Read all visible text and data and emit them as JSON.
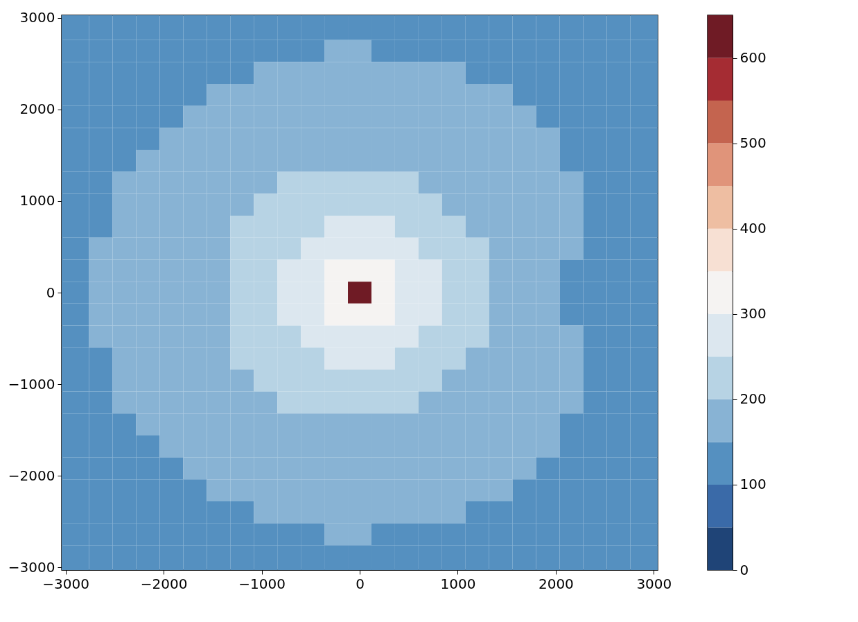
{
  "chart_data": {
    "type": "heatmap",
    "x": [
      -2880,
      -2640,
      -2400,
      -2160,
      -1920,
      -1680,
      -1440,
      -1200,
      -960,
      -720,
      -480,
      -240,
      0,
      240,
      480,
      720,
      960,
      1200,
      1440,
      1680,
      1920,
      2160,
      2400,
      2640,
      2880
    ],
    "y": [
      2880,
      2640,
      2400,
      2160,
      1920,
      1680,
      1440,
      1200,
      960,
      720,
      480,
      240,
      0,
      -240,
      -480,
      -720,
      -960,
      -1200,
      -1440,
      -1680,
      -1920,
      -2160,
      -2400,
      -2640,
      -2880
    ],
    "xlim": [
      -3040,
      3040
    ],
    "ylim": [
      -3030,
      3030
    ],
    "xticks": [
      {
        "value": -3000,
        "label": "−3000"
      },
      {
        "value": -2000,
        "label": "−2000"
      },
      {
        "value": -1000,
        "label": "−1000"
      },
      0,
      1000,
      2000,
      3000
    ],
    "yticks": [
      {
        "value": -3000,
        "label": "−3000"
      },
      {
        "value": -2000,
        "label": "−2000"
      },
      {
        "value": -1000,
        "label": "−1000"
      },
      0,
      1000,
      2000,
      3000
    ],
    "clim": [
      0,
      650
    ],
    "cticks": [
      0,
      100,
      200,
      300,
      400,
      500,
      600
    ],
    "colors": [
      "#1f4477",
      "#3a6aa8",
      "#5590c0",
      "#88b3d4",
      "#b7d3e4",
      "#dce7ef",
      "#f5f3f2",
      "#f7e0d3",
      "#eebea2",
      "#e0947a",
      "#c4644f",
      "#a52c33",
      "#6f1b25"
    ],
    "cells": [
      [
        125,
        125,
        125,
        125,
        125,
        125,
        125,
        125,
        125,
        125,
        125,
        125,
        125,
        125,
        125,
        125,
        125,
        125,
        125,
        125,
        125,
        125,
        125,
        125,
        125
      ],
      [
        125,
        125,
        125,
        125,
        125,
        125,
        125,
        125,
        125,
        125,
        125,
        175,
        175,
        125,
        125,
        125,
        125,
        125,
        125,
        125,
        125,
        125,
        125,
        125,
        125
      ],
      [
        125,
        125,
        125,
        125,
        125,
        125,
        125,
        125,
        175,
        175,
        175,
        175,
        175,
        175,
        175,
        175,
        175,
        125,
        125,
        125,
        125,
        125,
        125,
        125,
        125
      ],
      [
        125,
        125,
        125,
        125,
        125,
        125,
        175,
        175,
        175,
        175,
        175,
        175,
        175,
        175,
        175,
        175,
        175,
        175,
        175,
        125,
        125,
        125,
        125,
        125,
        125
      ],
      [
        125,
        125,
        125,
        125,
        125,
        175,
        175,
        175,
        175,
        175,
        175,
        175,
        175,
        175,
        175,
        175,
        175,
        175,
        175,
        175,
        125,
        125,
        125,
        125,
        125
      ],
      [
        125,
        125,
        125,
        125,
        175,
        175,
        175,
        175,
        175,
        175,
        175,
        175,
        175,
        175,
        175,
        175,
        175,
        175,
        175,
        175,
        175,
        125,
        125,
        125,
        125
      ],
      [
        125,
        125,
        125,
        175,
        175,
        175,
        175,
        175,
        175,
        175,
        175,
        175,
        175,
        175,
        175,
        175,
        175,
        175,
        175,
        175,
        175,
        125,
        125,
        125,
        125
      ],
      [
        125,
        125,
        175,
        175,
        175,
        175,
        175,
        175,
        175,
        225,
        225,
        225,
        225,
        225,
        225,
        175,
        175,
        175,
        175,
        175,
        175,
        175,
        125,
        125,
        125
      ],
      [
        125,
        125,
        175,
        175,
        175,
        175,
        175,
        175,
        225,
        225,
        225,
        225,
        225,
        225,
        225,
        225,
        175,
        175,
        175,
        175,
        175,
        175,
        125,
        125,
        125
      ],
      [
        125,
        125,
        175,
        175,
        175,
        175,
        175,
        225,
        225,
        225,
        225,
        275,
        275,
        275,
        225,
        225,
        225,
        175,
        175,
        175,
        175,
        175,
        125,
        125,
        125
      ],
      [
        125,
        175,
        175,
        175,
        175,
        175,
        175,
        225,
        225,
        225,
        275,
        275,
        275,
        275,
        275,
        225,
        225,
        225,
        175,
        175,
        175,
        175,
        125,
        125,
        125
      ],
      [
        125,
        175,
        175,
        175,
        175,
        175,
        175,
        225,
        225,
        275,
        275,
        325,
        325,
        325,
        275,
        275,
        225,
        225,
        175,
        175,
        175,
        125,
        125,
        125,
        125
      ],
      [
        125,
        175,
        175,
        175,
        175,
        175,
        175,
        225,
        225,
        275,
        275,
        325,
        625,
        325,
        275,
        275,
        225,
        225,
        175,
        175,
        175,
        125,
        125,
        125,
        125
      ],
      [
        125,
        175,
        175,
        175,
        175,
        175,
        175,
        225,
        225,
        275,
        275,
        325,
        325,
        325,
        275,
        275,
        225,
        225,
        175,
        175,
        175,
        125,
        125,
        125,
        125
      ],
      [
        125,
        175,
        175,
        175,
        175,
        175,
        175,
        225,
        225,
        225,
        275,
        275,
        275,
        275,
        275,
        225,
        225,
        225,
        175,
        175,
        175,
        175,
        125,
        125,
        125
      ],
      [
        125,
        125,
        175,
        175,
        175,
        175,
        175,
        225,
        225,
        225,
        225,
        275,
        275,
        275,
        225,
        225,
        225,
        175,
        175,
        175,
        175,
        175,
        125,
        125,
        125
      ],
      [
        125,
        125,
        175,
        175,
        175,
        175,
        175,
        175,
        225,
        225,
        225,
        225,
        225,
        225,
        225,
        225,
        175,
        175,
        175,
        175,
        175,
        175,
        125,
        125,
        125
      ],
      [
        125,
        125,
        175,
        175,
        175,
        175,
        175,
        175,
        175,
        225,
        225,
        225,
        225,
        225,
        225,
        175,
        175,
        175,
        175,
        175,
        175,
        175,
        125,
        125,
        125
      ],
      [
        125,
        125,
        125,
        175,
        175,
        175,
        175,
        175,
        175,
        175,
        175,
        175,
        175,
        175,
        175,
        175,
        175,
        175,
        175,
        175,
        175,
        125,
        125,
        125,
        125
      ],
      [
        125,
        125,
        125,
        125,
        175,
        175,
        175,
        175,
        175,
        175,
        175,
        175,
        175,
        175,
        175,
        175,
        175,
        175,
        175,
        175,
        175,
        125,
        125,
        125,
        125
      ],
      [
        125,
        125,
        125,
        125,
        125,
        175,
        175,
        175,
        175,
        175,
        175,
        175,
        175,
        175,
        175,
        175,
        175,
        175,
        175,
        175,
        125,
        125,
        125,
        125,
        125
      ],
      [
        125,
        125,
        125,
        125,
        125,
        125,
        175,
        175,
        175,
        175,
        175,
        175,
        175,
        175,
        175,
        175,
        175,
        175,
        175,
        125,
        125,
        125,
        125,
        125,
        125
      ],
      [
        125,
        125,
        125,
        125,
        125,
        125,
        125,
        125,
        175,
        175,
        175,
        175,
        175,
        175,
        175,
        175,
        175,
        125,
        125,
        125,
        125,
        125,
        125,
        125,
        125
      ],
      [
        125,
        125,
        125,
        125,
        125,
        125,
        125,
        125,
        125,
        125,
        125,
        175,
        175,
        125,
        125,
        125,
        125,
        125,
        125,
        125,
        125,
        125,
        125,
        125,
        125
      ],
      [
        125,
        125,
        125,
        125,
        125,
        125,
        125,
        125,
        125,
        125,
        125,
        125,
        125,
        125,
        125,
        125,
        125,
        125,
        125,
        125,
        125,
        125,
        125,
        125,
        125
      ]
    ]
  }
}
